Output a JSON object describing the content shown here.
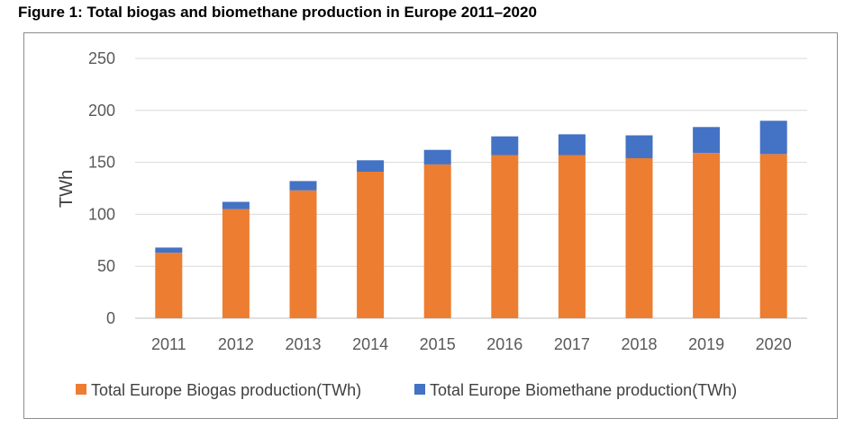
{
  "figure_title": "Figure 1: Total biogas and biomethane production in Europe 2011–2020",
  "chart_data": {
    "type": "bar",
    "stacked": true,
    "title": "Figure 1: Total biogas and biomethane production in Europe 2011–2020",
    "xlabel": "",
    "ylabel": "TWh",
    "ylim": [
      0,
      250
    ],
    "yticks": [
      0,
      50,
      100,
      150,
      200,
      250
    ],
    "grid": true,
    "legend_position": "bottom",
    "categories": [
      "2011",
      "2012",
      "2013",
      "2014",
      "2015",
      "2016",
      "2017",
      "2018",
      "2019",
      "2020"
    ],
    "series": [
      {
        "name": "Total Europe Biogas production(TWh)",
        "color": "#ED7D31",
        "values": [
          63,
          105,
          123,
          141,
          148,
          157,
          157,
          154,
          159,
          158
        ]
      },
      {
        "name": "Total Europe Biomethane production(TWh)",
        "color": "#4472C4",
        "values": [
          5,
          7,
          9,
          11,
          14,
          18,
          20,
          22,
          25,
          32
        ]
      }
    ]
  }
}
